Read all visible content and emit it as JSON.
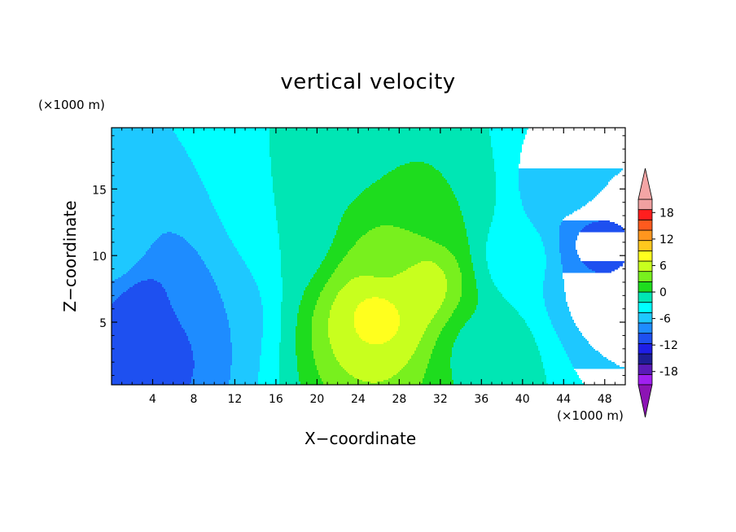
{
  "chart_data": {
    "type": "heatmap",
    "title": "vertical velocity",
    "xlabel": "X−coordinate",
    "ylabel": "Z−coordinate",
    "x_units": "(×1000 m)",
    "y_units": "(×1000 m)",
    "xlim": [
      0,
      50
    ],
    "ylim": [
      0.3,
      19.6
    ],
    "x_ticks": [
      4,
      8,
      12,
      16,
      20,
      24,
      28,
      32,
      36,
      40,
      44,
      48
    ],
    "y_ticks": [
      5,
      10,
      15
    ],
    "colorbar": {
      "levels": [
        -21,
        -18,
        -15,
        -12,
        -9,
        -6,
        -3,
        0,
        3,
        6,
        9,
        12,
        15,
        18,
        21
      ],
      "tick_labels": [
        18,
        12,
        6,
        0,
        -6,
        -12,
        -18
      ],
      "colors": [
        "#a020f0",
        "#5a1ab8",
        "#1e1e96",
        "#1e1ee6",
        "#1e50f0",
        "#1e8cff",
        "#1ec8ff",
        "#00ffff",
        "#00e6b4",
        "#1edc1e",
        "#78f01e",
        "#c8ff1e",
        "#ffff1e",
        "#ffc81e",
        "#ff961e",
        "#ff5a1e",
        "#ff1e1e",
        "#f0a0a0"
      ],
      "under_color": "#8c14b4",
      "over_color": "#f4a5a5"
    },
    "features": [
      {
        "x": 0,
        "z": 10,
        "value": -4
      },
      {
        "x": 3,
        "z": 6.5,
        "value": -10
      },
      {
        "x": 3.5,
        "z": 4,
        "value": -12
      },
      {
        "x": 9,
        "z": 7,
        "value": -6
      },
      {
        "x": 17,
        "z": 12,
        "value": 0
      },
      {
        "x": 21,
        "z": 19,
        "value": 0
      },
      {
        "x": 28,
        "z": 10,
        "value": 6
      },
      {
        "x": 26,
        "z": 5.5,
        "value": 13
      },
      {
        "x": 29.5,
        "z": 8,
        "value": 12
      },
      {
        "x": 32,
        "z": 14,
        "value": 3
      },
      {
        "x": 36,
        "z": 3,
        "value": 2
      },
      {
        "x": 40,
        "z": 10,
        "value": -2
      },
      {
        "x": 44.5,
        "z": 15,
        "value": -5
      },
      {
        "x": 47,
        "z": 11,
        "value": -10
      },
      {
        "x": 49,
        "z": 8,
        "value": -9
      }
    ]
  }
}
